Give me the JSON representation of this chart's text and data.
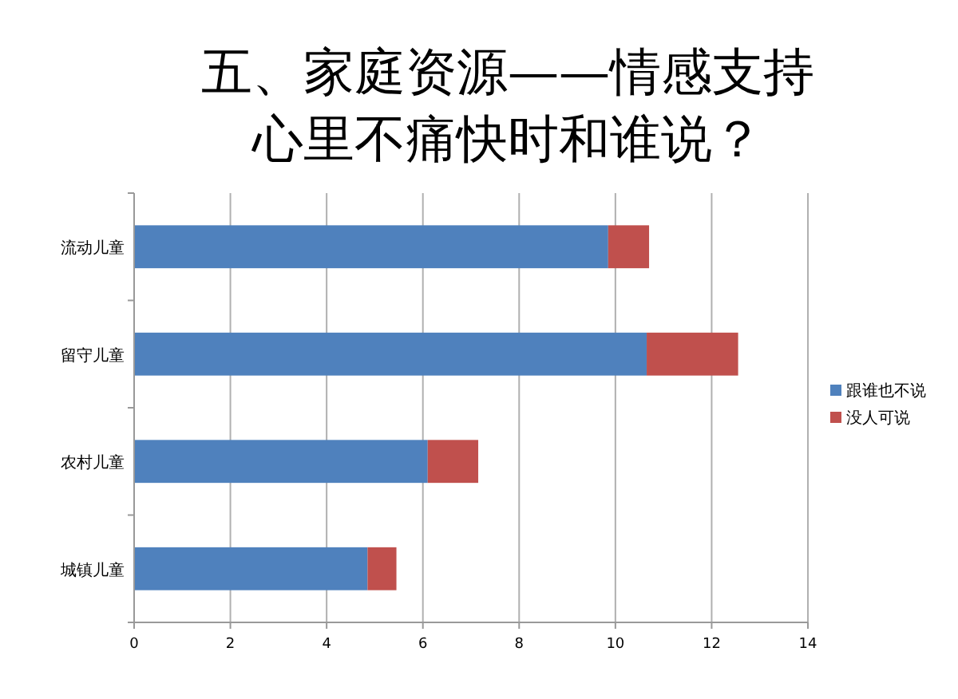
{
  "chart_data": {
    "type": "bar",
    "orientation": "horizontal",
    "stacked": true,
    "title": "五、家庭资源——情感支持",
    "subtitle": "心里不痛快时和谁说？",
    "categories": [
      "流动儿童",
      "留守儿童",
      "农村儿童",
      "城镇儿童"
    ],
    "series": [
      {
        "name": "跟谁也不说",
        "color": "#4f81bd",
        "values": [
          9.85,
          10.65,
          6.1,
          4.85
        ]
      },
      {
        "name": "没人可说",
        "color": "#c0504d",
        "values": [
          0.85,
          1.9,
          1.05,
          0.6
        ]
      }
    ],
    "xlim": [
      0,
      14
    ],
    "xticks": [
      0,
      2,
      4,
      6,
      8,
      10,
      12,
      14
    ],
    "grid": "x",
    "legend": "right"
  }
}
